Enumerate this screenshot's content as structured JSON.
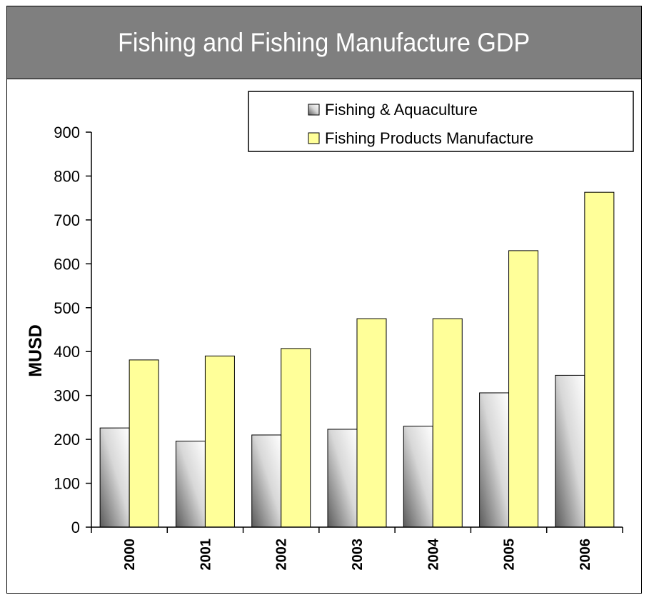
{
  "header": {
    "title": "Fishing and Fishing Manufacture GDP"
  },
  "chart_data": {
    "type": "bar",
    "title": "Fishing and Fishing Manufacture GDP",
    "xlabel": "",
    "ylabel": "MUSD",
    "ylim": [
      0,
      900
    ],
    "yticks": [
      0,
      100,
      200,
      300,
      400,
      500,
      600,
      700,
      800,
      900
    ],
    "grid": false,
    "legend_position": "top-right",
    "categories": [
      "2000",
      "2001",
      "2002",
      "2003",
      "2004",
      "2005",
      "2006"
    ],
    "series": [
      {
        "name": "Fishing & Aquaculture",
        "color": "#c0c0c0",
        "values": [
          226,
          196,
          210,
          223,
          230,
          306,
          346
        ]
      },
      {
        "name": "Fishing Products Manufacture",
        "color": "#ffff99",
        "values": [
          381,
          390,
          407,
          475,
          475,
          630,
          763
        ]
      }
    ]
  }
}
